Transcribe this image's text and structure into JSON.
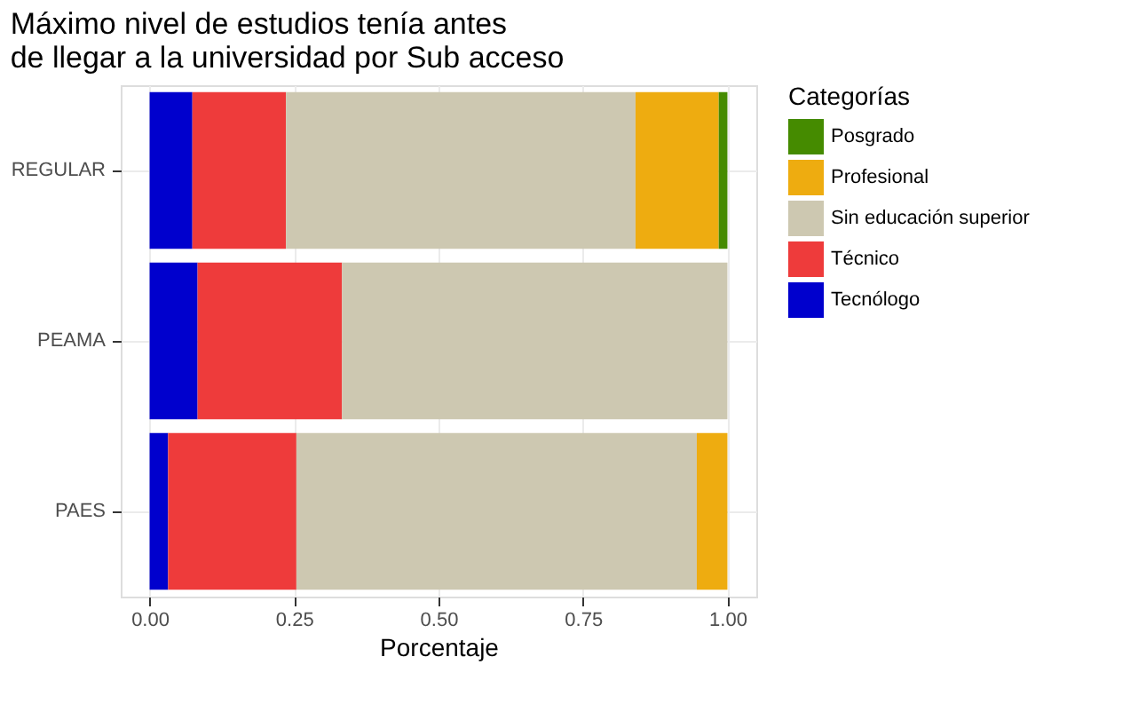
{
  "chart_data": {
    "type": "bar",
    "orientation": "horizontal",
    "stacked": true,
    "title": "Máximo nivel de estudios tenía antes\nde llegar a la universidad por Sub acceso",
    "xlabel": "Porcentaje",
    "legend_title": "Categorías",
    "legend": "right",
    "grid": true,
    "categories": [
      "REGULAR",
      "PEAMA",
      "PAES"
    ],
    "series": [
      {
        "name": "Tecnólogo",
        "color": "#0000cd",
        "values": [
          0.074,
          0.083,
          0.032
        ]
      },
      {
        "name": "Técnico",
        "color": "#ee3b3b",
        "values": [
          0.162,
          0.25,
          0.222
        ]
      },
      {
        "name": "Sin educación superior",
        "color": "#cdc8b1",
        "values": [
          0.605,
          0.667,
          0.693
        ]
      },
      {
        "name": "Profesional",
        "color": "#eeac10",
        "values": [
          0.144,
          null,
          0.053
        ]
      },
      {
        "name": "Posgrado",
        "color": "#458b00",
        "values": [
          0.015,
          null,
          null
        ]
      }
    ],
    "xlim": [
      -0.05,
      1.05
    ],
    "xticks": [
      {
        "value": 0,
        "label": "0.00"
      },
      {
        "value": 0.25,
        "label": "0.25"
      },
      {
        "value": 0.5,
        "label": "0.50"
      },
      {
        "value": 0.75,
        "label": "0.75"
      },
      {
        "value": 1,
        "label": "1.00"
      }
    ]
  }
}
